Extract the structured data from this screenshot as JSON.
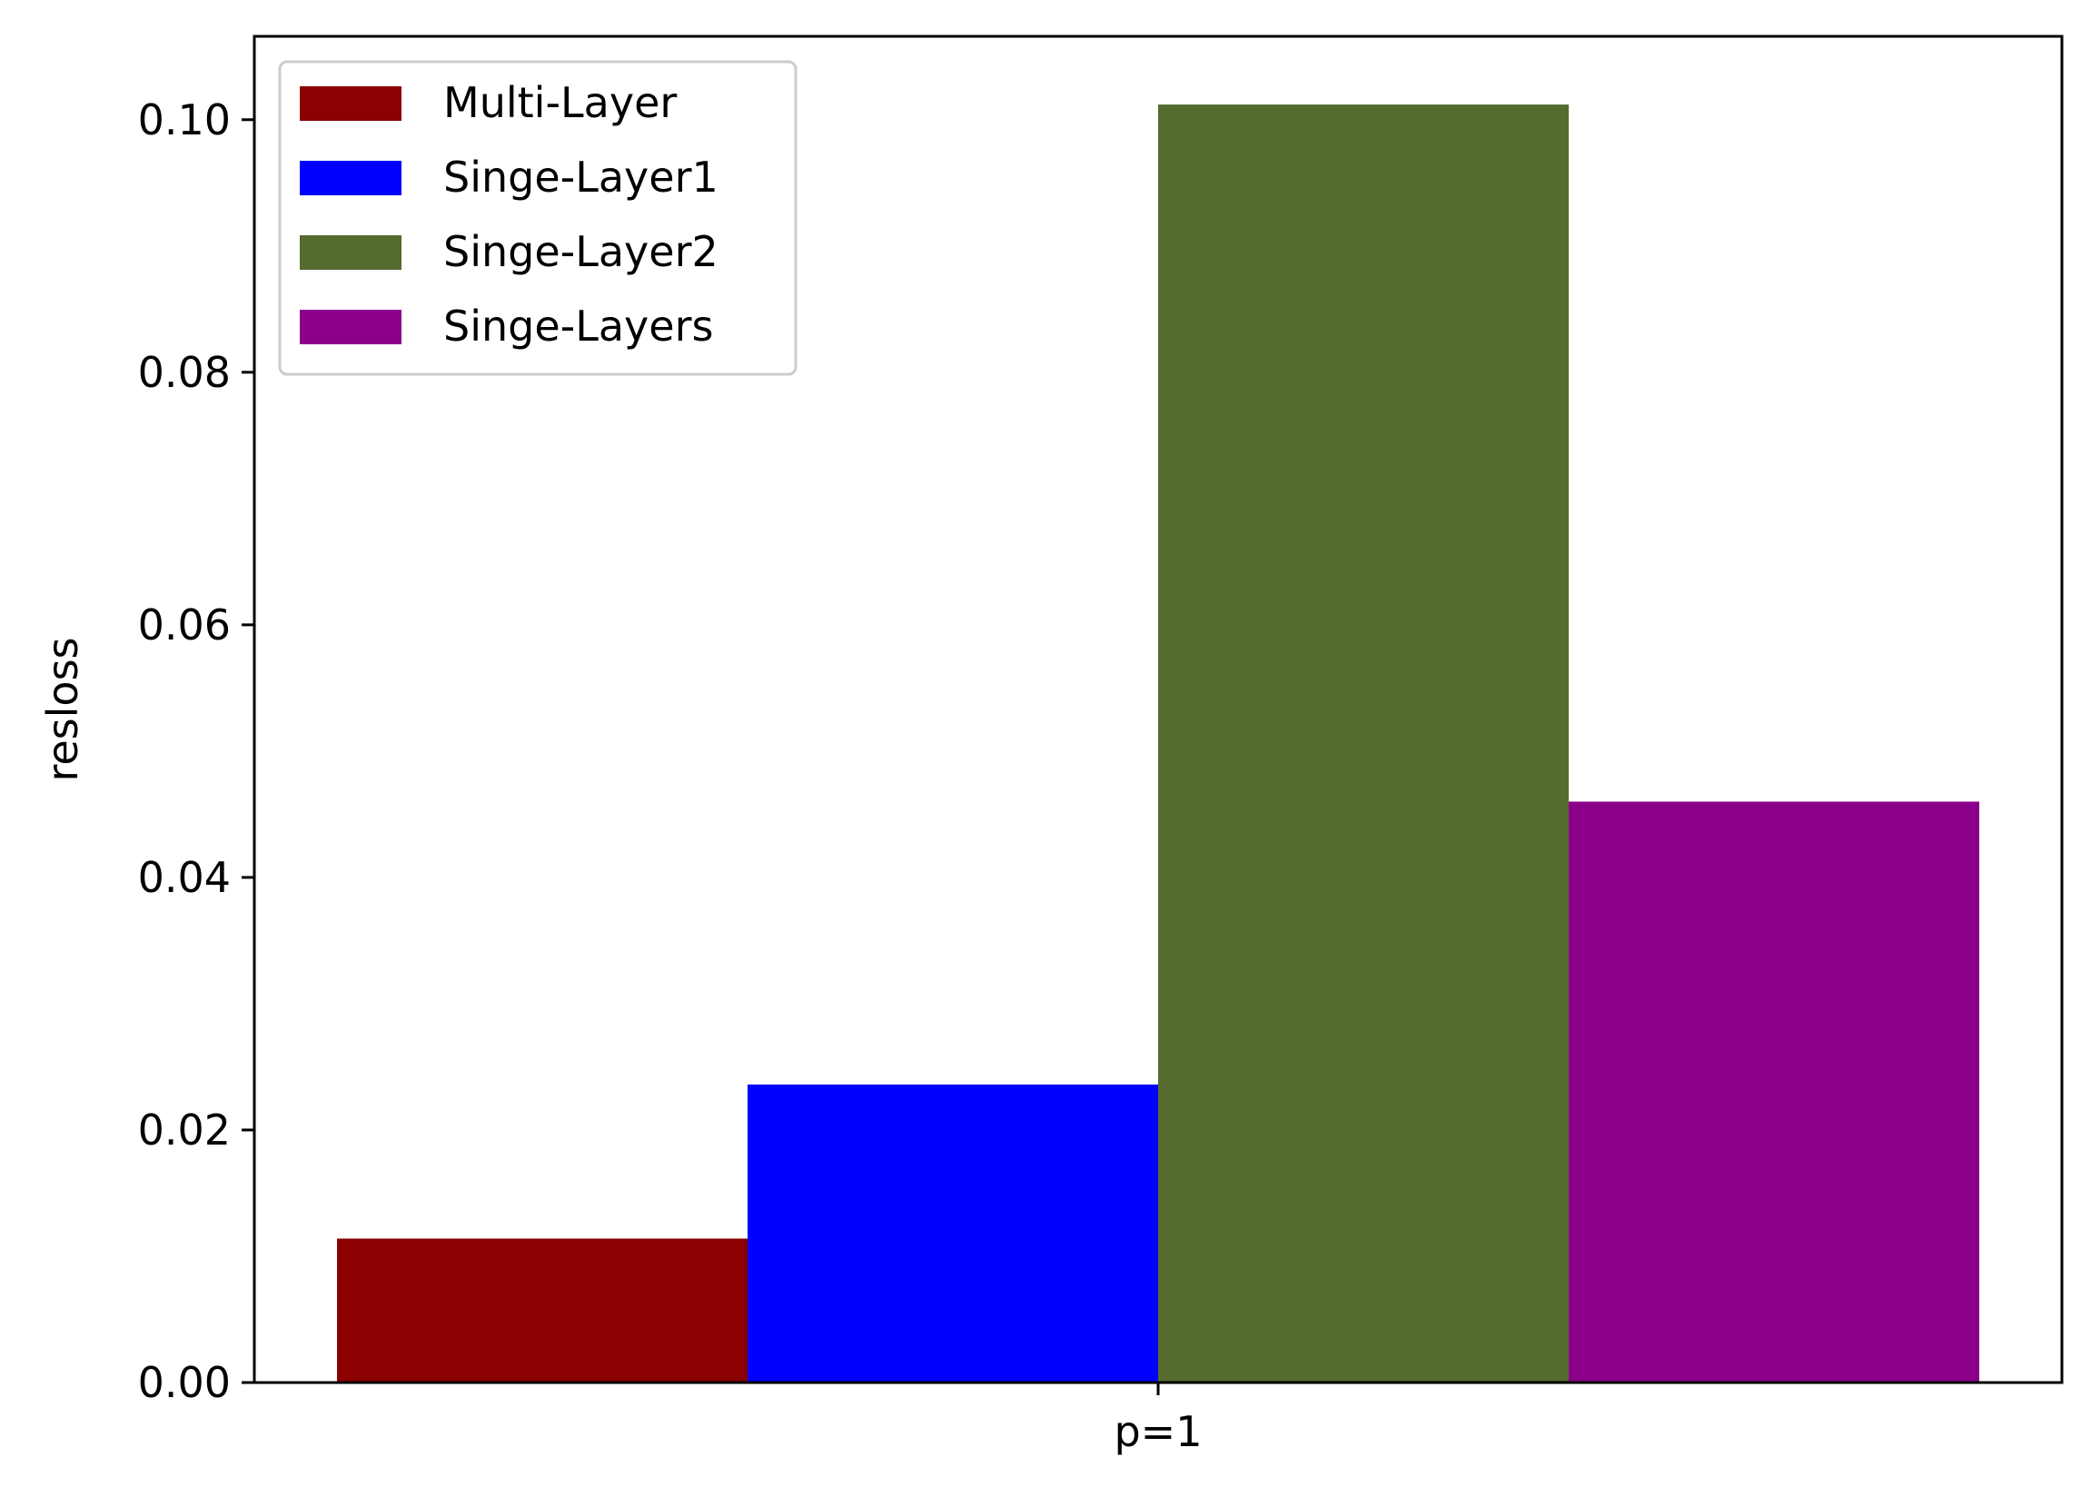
{
  "chart_data": {
    "type": "bar",
    "title": "",
    "xlabel": "",
    "ylabel": "resloss",
    "categories": [
      "p=1"
    ],
    "ylim": [
      0,
      0.1066
    ],
    "yticks": [
      "0.00",
      "0.02",
      "0.04",
      "0.06",
      "0.08",
      "0.10"
    ],
    "ytick_values": [
      0,
      0.02,
      0.04,
      0.06,
      0.08,
      0.1
    ],
    "grid": false,
    "legend": "top-left",
    "series": [
      {
        "name": "Multi-Layer",
        "values": [
          0.0114
        ],
        "color": "#8b0000"
      },
      {
        "name": "Singe-Layer1",
        "values": [
          0.0236
        ],
        "color": "#0000ff"
      },
      {
        "name": "Singe-Layer2",
        "values": [
          0.1012
        ],
        "color": "#556b2f"
      },
      {
        "name": "Singe-Layers",
        "values": [
          0.046
        ],
        "color": "#8b008b"
      }
    ]
  }
}
